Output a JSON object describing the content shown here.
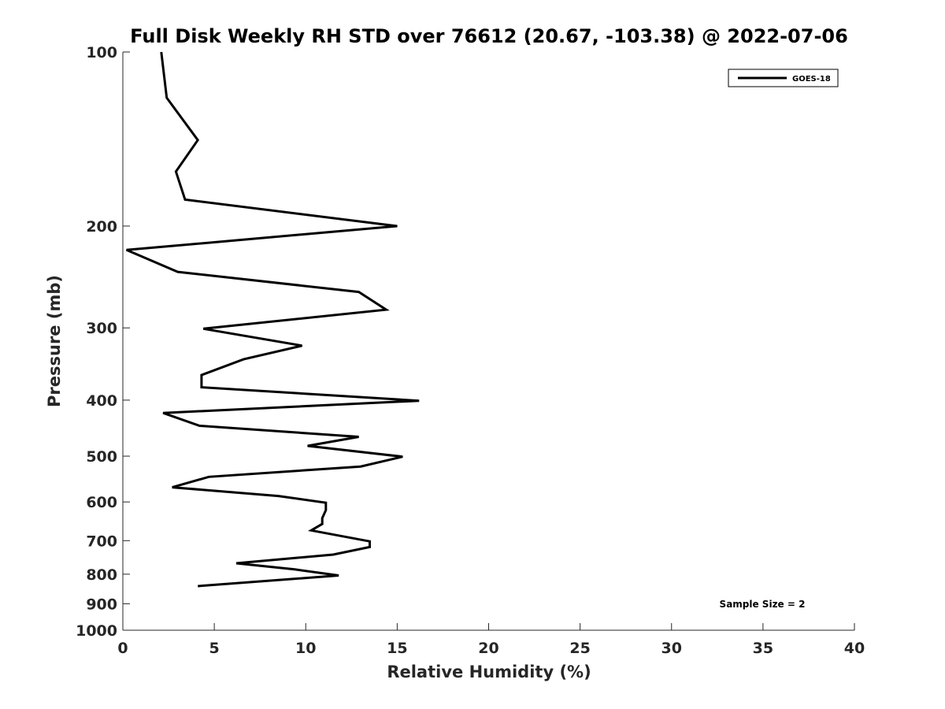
{
  "chart_data": {
    "type": "line",
    "title": "Full Disk Weekly RH STD over 76612 (20.67, -103.38) @ 2022-07-06",
    "xlabel": "Relative Humidity (%)",
    "ylabel": "Pressure (mb)",
    "xlim": [
      0,
      40
    ],
    "ylim": [
      100,
      1000
    ],
    "y_scale": "log",
    "y_reversed": true,
    "grid": false,
    "x_ticks": [
      "0",
      "5",
      "10",
      "15",
      "20",
      "25",
      "30",
      "35",
      "40"
    ],
    "y_ticks": [
      "100",
      "200",
      "300",
      "400",
      "500",
      "600",
      "700",
      "800",
      "900",
      "1000"
    ],
    "legend_position": "top-right",
    "annotation": "Sample Size = 2",
    "series": [
      {
        "name": "GOES-18",
        "color": "#000000",
        "points": [
          {
            "x": 2.1,
            "p": 100
          },
          {
            "x": 2.4,
            "p": 120
          },
          {
            "x": 4.1,
            "p": 142
          },
          {
            "x": 2.9,
            "p": 161
          },
          {
            "x": 3.4,
            "p": 180
          },
          {
            "x": 15.0,
            "p": 200
          },
          {
            "x": 0.2,
            "p": 220
          },
          {
            "x": 3.0,
            "p": 240
          },
          {
            "x": 12.9,
            "p": 260
          },
          {
            "x": 14.4,
            "p": 279
          },
          {
            "x": 4.4,
            "p": 301
          },
          {
            "x": 9.8,
            "p": 322
          },
          {
            "x": 6.6,
            "p": 340
          },
          {
            "x": 4.3,
            "p": 362
          },
          {
            "x": 4.3,
            "p": 380
          },
          {
            "x": 16.2,
            "p": 401
          },
          {
            "x": 2.2,
            "p": 421
          },
          {
            "x": 4.2,
            "p": 443
          },
          {
            "x": 12.9,
            "p": 463
          },
          {
            "x": 10.1,
            "p": 480
          },
          {
            "x": 15.3,
            "p": 501
          },
          {
            "x": 13.0,
            "p": 521
          },
          {
            "x": 4.7,
            "p": 543
          },
          {
            "x": 2.7,
            "p": 566
          },
          {
            "x": 8.5,
            "p": 586
          },
          {
            "x": 11.1,
            "p": 602
          },
          {
            "x": 11.1,
            "p": 620
          },
          {
            "x": 10.9,
            "p": 640
          },
          {
            "x": 10.9,
            "p": 655
          },
          {
            "x": 10.3,
            "p": 672
          },
          {
            "x": 13.5,
            "p": 702
          },
          {
            "x": 13.5,
            "p": 718
          },
          {
            "x": 11.5,
            "p": 740
          },
          {
            "x": 6.2,
            "p": 766
          },
          {
            "x": 9.4,
            "p": 785
          },
          {
            "x": 11.8,
            "p": 804
          },
          {
            "x": 4.1,
            "p": 839
          }
        ]
      }
    ]
  }
}
